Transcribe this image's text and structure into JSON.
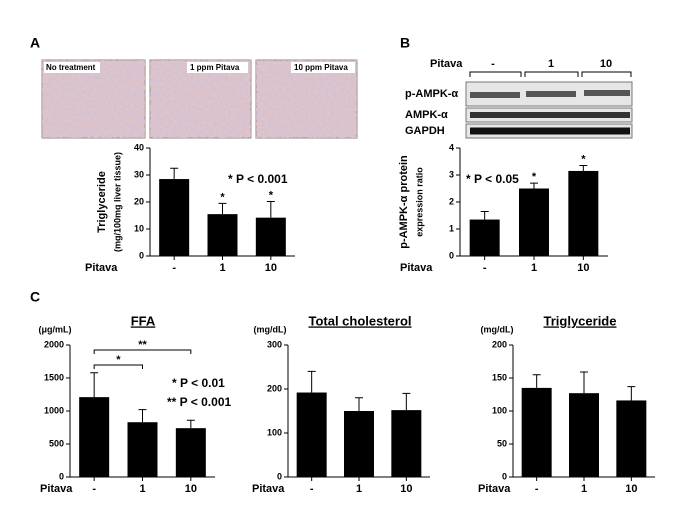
{
  "panel_labels": [
    "A",
    "B",
    "C"
  ],
  "micrographs": [
    "No treatment",
    "1 ppm Pitava",
    "10 ppm Pitava"
  ],
  "blot": {
    "treatment_label": "Pitava",
    "lanes": [
      "-",
      "1",
      "10"
    ],
    "rows": [
      "p-AMPK-α",
      "AMPK-α",
      "GAPDH"
    ]
  },
  "chart_data": [
    {
      "type": "bar",
      "ylabel": [
        "Triglyceride",
        "(mg/100mg liver tissue)"
      ],
      "xlabel": "Pitava",
      "categories": [
        "-",
        "1",
        "10"
      ],
      "values": [
        28.5,
        15.5,
        14.2
      ],
      "errors": [
        4,
        4,
        6
      ],
      "color": "#000000",
      "stars": [
        null,
        "*",
        "*"
      ],
      "annotations": [
        "* P < 0.001"
      ],
      "ylim": [
        0,
        40
      ],
      "yticks": [
        0,
        10,
        20,
        30,
        40
      ]
    },
    {
      "type": "bar",
      "ylabel": [
        "p-AMPK-α protein",
        "expression ratio"
      ],
      "xlabel": "Pitava",
      "categories": [
        "-",
        "1",
        "10"
      ],
      "values": [
        1.35,
        2.5,
        3.15
      ],
      "errors": [
        0.3,
        0.2,
        0.2
      ],
      "color": "#000000",
      "stars": [
        null,
        "*",
        "*"
      ],
      "annotations": [
        "* P < 0.05"
      ],
      "ylim": [
        0,
        4
      ],
      "yticks": [
        0,
        1,
        2,
        3,
        4
      ]
    },
    {
      "type": "bar",
      "title": "FFA",
      "unit": "(μg/mL)",
      "xlabel": "Pitava",
      "categories": [
        "-",
        "1",
        "10"
      ],
      "values": [
        1210,
        830,
        740
      ],
      "errors": [
        370,
        190,
        120
      ],
      "color": "#000000",
      "bracket_labels": [
        "*",
        "**"
      ],
      "annotations": [
        "* P < 0.01",
        "** P < 0.001"
      ],
      "ylim": [
        0,
        2000
      ],
      "yticks": [
        0,
        500,
        1000,
        1500,
        2000
      ]
    },
    {
      "type": "bar",
      "title": "Total cholesterol",
      "unit": "(mg/dL)",
      "xlabel": "Pitava",
      "categories": [
        "-",
        "1",
        "10"
      ],
      "values": [
        192,
        150,
        152
      ],
      "errors": [
        48,
        30,
        38
      ],
      "color": "#000000",
      "ylim": [
        0,
        300
      ],
      "yticks": [
        0,
        100,
        200,
        300
      ]
    },
    {
      "type": "bar",
      "title": "Triglyceride",
      "unit": "(mg/dL)",
      "xlabel": "Pitava",
      "categories": [
        "-",
        "1",
        "10"
      ],
      "values": [
        135,
        127,
        116
      ],
      "errors": [
        20,
        32,
        21
      ],
      "color": "#000000",
      "ylim": [
        0,
        200
      ],
      "yticks": [
        0,
        50,
        100,
        150,
        200
      ]
    }
  ]
}
